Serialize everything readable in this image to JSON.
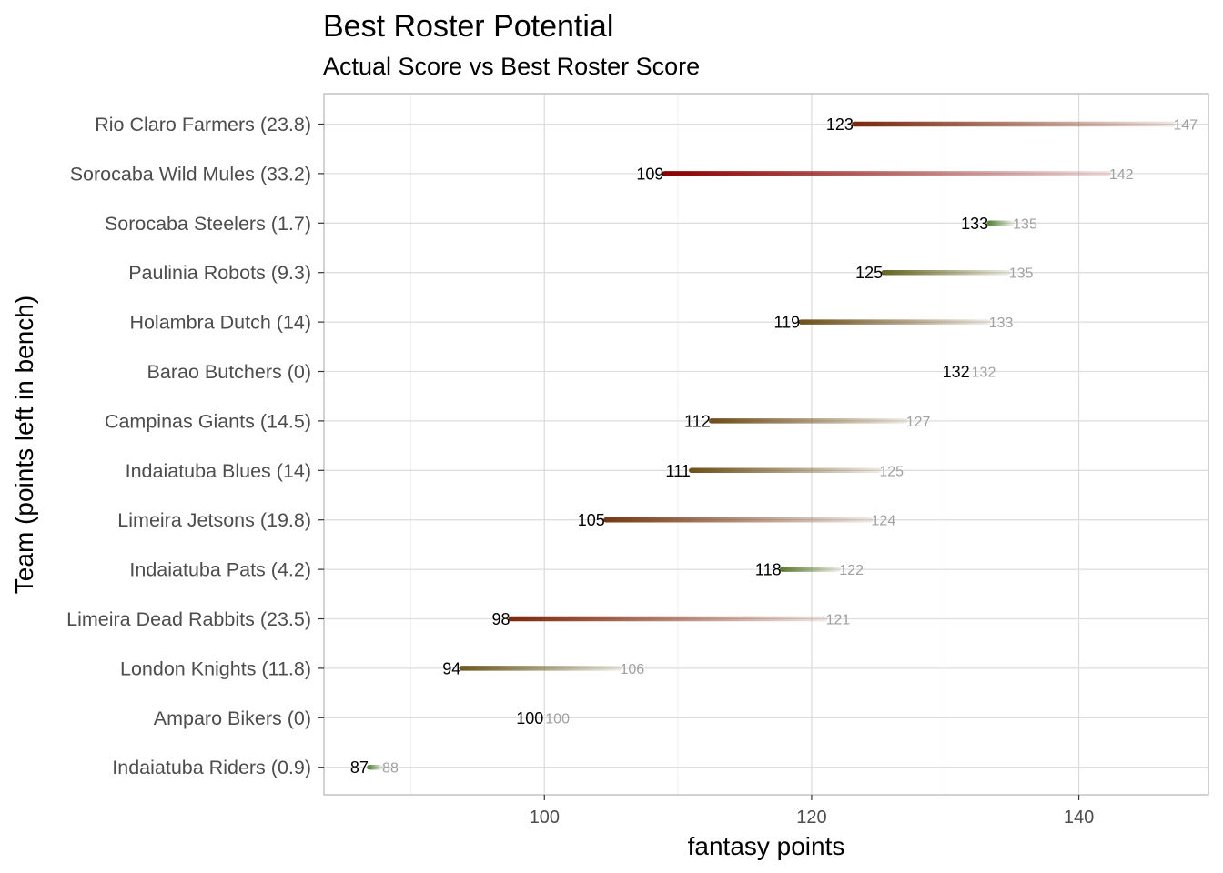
{
  "chart_data": {
    "type": "range-dot",
    "title": "Best Roster Potential",
    "subtitle": "Actual Score vs Best Roster Score",
    "xlabel": "fantasy points",
    "ylabel": "Team (points left in bench)",
    "xlim": [
      83.5,
      149.7
    ],
    "xticks": [
      100,
      120,
      140
    ],
    "xtick_labels": [
      "100",
      "120",
      "140"
    ],
    "grid": true,
    "colors": {
      "low_gap": "#5a8a3c",
      "mid_gap": "#6b5a1e",
      "high_gap": "#8b0000"
    },
    "teams": [
      {
        "label": "Rio Claro Farmers (23.8)",
        "actual": 123.2,
        "best": 147.0,
        "actual_label": "123",
        "best_label": "147"
      },
      {
        "label": "Sorocaba Wild Mules (33.2)",
        "actual": 109.0,
        "best": 142.2,
        "actual_label": "109",
        "best_label": "142"
      },
      {
        "label": "Sorocaba Steelers (1.7)",
        "actual": 133.3,
        "best": 135.0,
        "actual_label": "133",
        "best_label": "135"
      },
      {
        "label": "Paulinia Robots (9.3)",
        "actual": 125.4,
        "best": 134.7,
        "actual_label": "125",
        "best_label": "135"
      },
      {
        "label": "Holambra Dutch (14)",
        "actual": 119.2,
        "best": 133.2,
        "actual_label": "119",
        "best_label": "133"
      },
      {
        "label": "Barao Butchers (0)",
        "actual": 131.9,
        "best": 131.9,
        "actual_label": "132",
        "best_label": "132"
      },
      {
        "label": "Campinas Giants (14.5)",
        "actual": 112.5,
        "best": 127.0,
        "actual_label": "112",
        "best_label": "127"
      },
      {
        "label": "Indaiatuba Blues (14)",
        "actual": 111.0,
        "best": 125.0,
        "actual_label": "111",
        "best_label": "125"
      },
      {
        "label": "Limeira Jetsons (19.8)",
        "actual": 104.6,
        "best": 124.4,
        "actual_label": "105",
        "best_label": "124"
      },
      {
        "label": "Indaiatuba Pats (4.2)",
        "actual": 117.8,
        "best": 122.0,
        "actual_label": "118",
        "best_label": "122"
      },
      {
        "label": "Limeira Dead Rabbits (23.5)",
        "actual": 97.5,
        "best": 121.0,
        "actual_label": "98",
        "best_label": "121"
      },
      {
        "label": "London Knights (11.8)",
        "actual": 93.8,
        "best": 105.6,
        "actual_label": "94",
        "best_label": "106"
      },
      {
        "label": "Amparo Bikers (0)",
        "actual": 100.0,
        "best": 100.0,
        "actual_label": "100",
        "best_label": "100"
      },
      {
        "label": "Indaiatuba Riders (0.9)",
        "actual": 86.9,
        "best": 87.8,
        "actual_label": "87",
        "best_label": "88"
      }
    ]
  }
}
